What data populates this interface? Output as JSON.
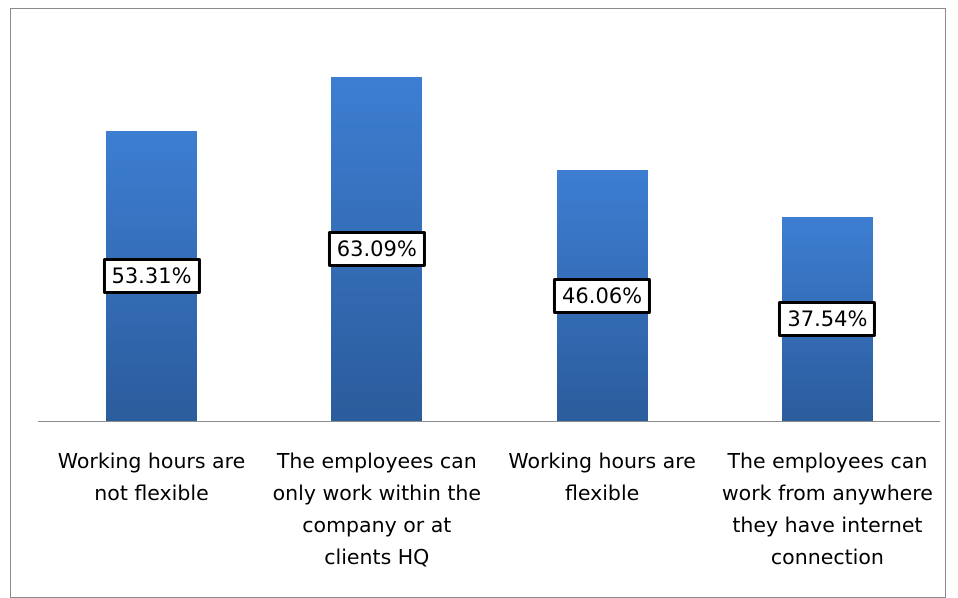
{
  "chart_data": {
    "type": "bar",
    "categories": [
      "Working hours are not flexible",
      "The employees can only work within the company or at clients HQ",
      "Working hours are flexible",
      "The employees can work from anywhere they have internet connection"
    ],
    "values": [
      53.31,
      63.09,
      46.06,
      37.54
    ],
    "value_labels": [
      "53.31%",
      "63.09%",
      "46.06%",
      "37.54%"
    ]
  }
}
